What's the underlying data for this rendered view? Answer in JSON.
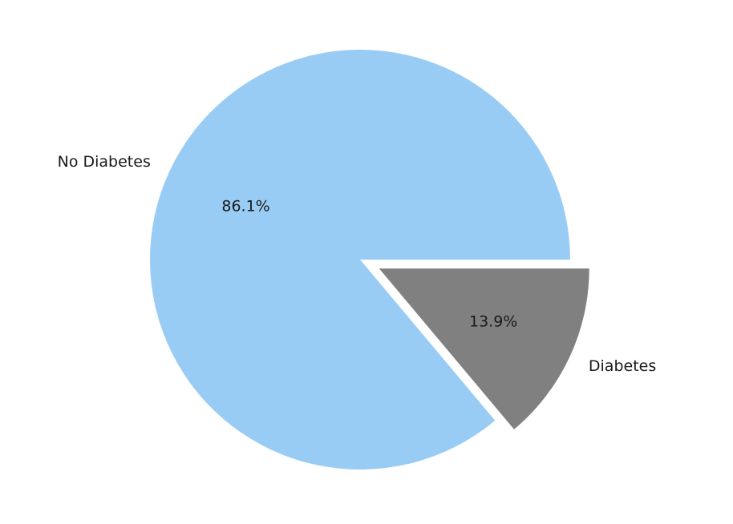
{
  "chart_data": {
    "type": "pie",
    "title": "",
    "start_angle_degrees": 0,
    "direction": "counterclockwise",
    "slices": [
      {
        "label": "No Diabetes",
        "value": 86.1,
        "pct_label": "86.1%",
        "color": "#99ccf5",
        "explode": 0
      },
      {
        "label": "Diabetes",
        "value": 13.9,
        "pct_label": "13.9%",
        "color": "#808080",
        "explode": 0.1
      }
    ],
    "legend": "none",
    "edge_color": "#ffffff"
  }
}
